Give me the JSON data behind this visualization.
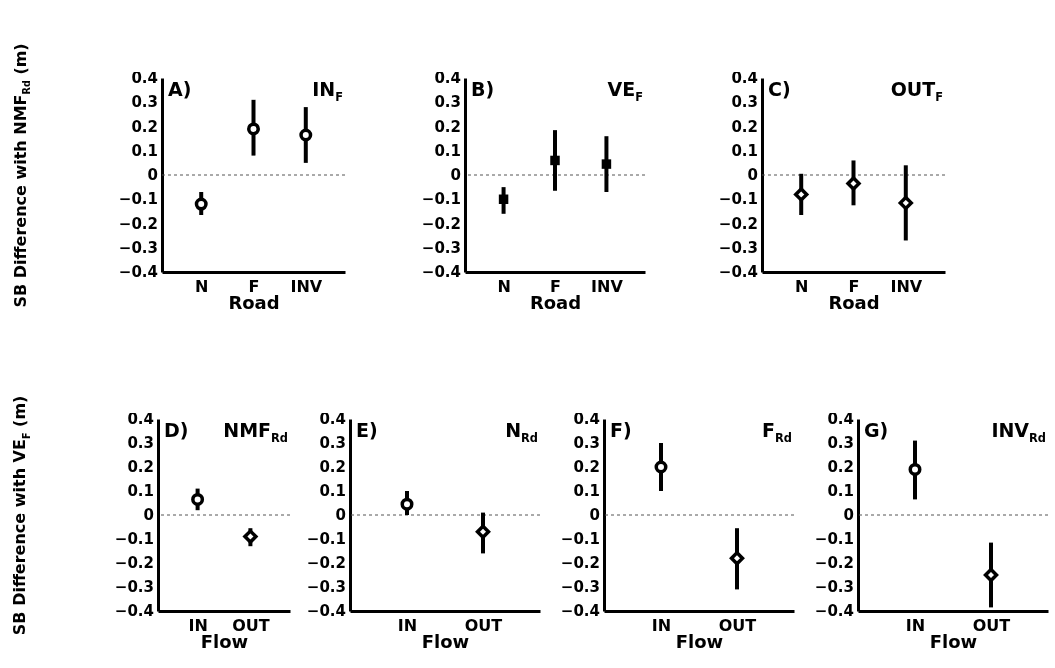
{
  "chart_data": [
    {
      "type": "scatter",
      "title": "IN$_{F}$",
      "annotations": [
        "A)"
      ],
      "xlabel": "Road",
      "ylabel": "SB Difference with NMF$_{Rd}$ (m)",
      "categories": [
        "N",
        "F",
        "INV"
      ],
      "marker": "circle",
      "series": [
        {
          "color": "#000000",
          "values": [
            -0.12,
            0.19,
            0.165
          ],
          "errors": [
            [
              -0.165,
              -0.07
            ],
            [
              0.08,
              0.31
            ],
            [
              0.05,
              0.28
            ]
          ]
        }
      ],
      "ylim": [
        -0.4,
        0.4
      ],
      "yticks": [
        -0.4,
        -0.3,
        -0.2,
        -0.1,
        0,
        0.1,
        0.2,
        0.3,
        0.4
      ],
      "ref_lines": [
        {
          "axis": "y",
          "value": 0,
          "line_style": "dashed"
        }
      ]
    },
    {
      "type": "scatter",
      "title": "VE$_{F}$",
      "annotations": [
        "B)"
      ],
      "xlabel": "Road",
      "categories": [
        "N",
        "F",
        "INV"
      ],
      "marker": "square",
      "series": [
        {
          "color": "#000000",
          "values": [
            -0.1,
            0.06,
            0.045
          ],
          "errors": [
            [
              -0.16,
              -0.05
            ],
            [
              -0.065,
              0.185
            ],
            [
              -0.07,
              0.16
            ]
          ]
        }
      ],
      "ylim": [
        -0.4,
        0.4
      ],
      "yticks": [
        -0.4,
        -0.3,
        -0.2,
        -0.1,
        0,
        0.1,
        0.2,
        0.3,
        0.4
      ],
      "ref_lines": [
        {
          "axis": "y",
          "value": 0,
          "line_style": "dashed"
        }
      ]
    },
    {
      "type": "scatter",
      "title": "OUT$_{F}$",
      "annotations": [
        "C)"
      ],
      "xlabel": "Road",
      "categories": [
        "N",
        "F",
        "INV"
      ],
      "marker": "diamond",
      "series": [
        {
          "color": "#000000",
          "values": [
            -0.08,
            -0.035,
            -0.115
          ],
          "errors": [
            [
              -0.165,
              0.005
            ],
            [
              -0.125,
              0.06
            ],
            [
              -0.27,
              0.04
            ]
          ]
        }
      ],
      "ylim": [
        -0.4,
        0.4
      ],
      "yticks": [
        -0.4,
        -0.3,
        -0.2,
        -0.1,
        0,
        0.1,
        0.2,
        0.3,
        0.4
      ],
      "ref_lines": [
        {
          "axis": "y",
          "value": 0,
          "line_style": "dashed"
        }
      ]
    },
    {
      "type": "scatter",
      "title": "NMF$_{Rd}$",
      "annotations": [
        "D)"
      ],
      "xlabel": "Flow",
      "ylabel": "SB Difference with VE$_{F}$ (m)",
      "categories": [
        "IN",
        "OUT"
      ],
      "series": [
        {
          "color": "#000000",
          "x": [
            "IN"
          ],
          "marker": "circle",
          "values": [
            0.065
          ],
          "errors": [
            [
              0.02,
              0.11
            ]
          ]
        },
        {
          "color": "#000000",
          "x": [
            "OUT"
          ],
          "marker": "diamond",
          "values": [
            -0.09
          ],
          "errors": [
            [
              -0.13,
              -0.055
            ]
          ]
        }
      ],
      "ylim": [
        -0.4,
        0.4
      ],
      "yticks": [
        -0.4,
        -0.3,
        -0.2,
        -0.1,
        0,
        0.1,
        0.2,
        0.3,
        0.4
      ],
      "ref_lines": [
        {
          "axis": "y",
          "value": 0,
          "line_style": "dashed"
        }
      ]
    },
    {
      "type": "scatter",
      "title": "N$_{Rd}$",
      "annotations": [
        "E)"
      ],
      "xlabel": "Flow",
      "categories": [
        "IN",
        "OUT"
      ],
      "series": [
        {
          "color": "#000000",
          "x": [
            "IN"
          ],
          "marker": "circle",
          "values": [
            0.045
          ],
          "errors": [
            [
              0,
              0.1
            ]
          ]
        },
        {
          "color": "#000000",
          "x": [
            "OUT"
          ],
          "marker": "diamond",
          "values": [
            -0.07
          ],
          "errors": [
            [
              -0.16,
              0.01
            ]
          ]
        }
      ],
      "ylim": [
        -0.4,
        0.4
      ],
      "yticks": [
        -0.4,
        -0.3,
        -0.2,
        -0.1,
        0,
        0.1,
        0.2,
        0.3,
        0.4
      ],
      "ref_lines": [
        {
          "axis": "y",
          "value": 0,
          "line_style": "dashed"
        }
      ]
    },
    {
      "type": "scatter",
      "title": "F$_{Rd}$",
      "annotations": [
        "F)"
      ],
      "xlabel": "Flow",
      "categories": [
        "IN",
        "OUT"
      ],
      "series": [
        {
          "color": "#000000",
          "x": [
            "IN"
          ],
          "marker": "circle",
          "values": [
            0.2
          ],
          "errors": [
            [
              0.1,
              0.3
            ]
          ]
        },
        {
          "color": "#000000",
          "x": [
            "OUT"
          ],
          "marker": "diamond",
          "values": [
            -0.18
          ],
          "errors": [
            [
              -0.31,
              -0.055
            ]
          ]
        }
      ],
      "ylim": [
        -0.4,
        0.4
      ],
      "yticks": [
        -0.4,
        -0.3,
        -0.2,
        -0.1,
        0,
        0.1,
        0.2,
        0.3,
        0.4
      ],
      "ref_lines": [
        {
          "axis": "y",
          "value": 0,
          "line_style": "dashed"
        }
      ]
    },
    {
      "type": "scatter",
      "title": "INV$_{Rd}$",
      "annotations": [
        "G)"
      ],
      "xlabel": "Flow",
      "categories": [
        "IN",
        "OUT"
      ],
      "series": [
        {
          "color": "#000000",
          "x": [
            "IN"
          ],
          "marker": "circle",
          "values": [
            0.19
          ],
          "errors": [
            [
              0.065,
              0.31
            ]
          ]
        },
        {
          "color": "#000000",
          "x": [
            "OUT"
          ],
          "marker": "diamond",
          "values": [
            -0.25
          ],
          "errors": [
            [
              -0.385,
              -0.115
            ]
          ]
        }
      ],
      "ylim": [
        -0.4,
        0.4
      ],
      "yticks": [
        -0.4,
        -0.3,
        -0.2,
        -0.1,
        0,
        0.1,
        0.2,
        0.3,
        0.4
      ],
      "ref_lines": [
        {
          "axis": "y",
          "value": 0,
          "line_style": "dashed"
        }
      ]
    }
  ]
}
